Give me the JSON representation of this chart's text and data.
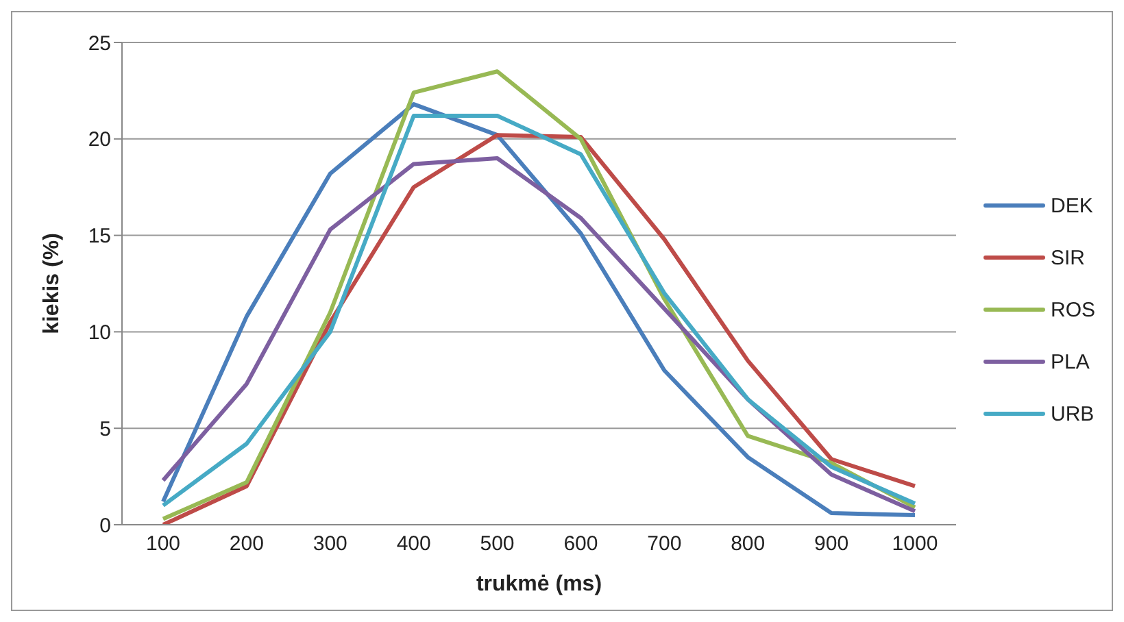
{
  "chart_data": {
    "type": "line",
    "xlabel": "trukmė (ms)",
    "ylabel": "kiekis (%)",
    "categories": [
      "100",
      "200",
      "300",
      "400",
      "500",
      "600",
      "700",
      "800",
      "900",
      "1000"
    ],
    "series": [
      {
        "name": "DEK",
        "color": "#4a7ebb",
        "values": [
          1.2,
          10.8,
          18.2,
          21.8,
          20.2,
          15.1,
          8.0,
          3.5,
          0.6,
          0.5
        ]
      },
      {
        "name": "SIR",
        "color": "#be4b48",
        "values": [
          0,
          2.0,
          10.5,
          17.5,
          20.2,
          20.1,
          14.8,
          8.5,
          3.4,
          2.0
        ]
      },
      {
        "name": "ROS",
        "color": "#98b954",
        "values": [
          0.3,
          2.2,
          11.0,
          22.4,
          23.5,
          20.0,
          11.7,
          4.6,
          3.2,
          0.9
        ]
      },
      {
        "name": "PLA",
        "color": "#7d5fa0",
        "values": [
          2.3,
          7.3,
          15.3,
          18.7,
          19.0,
          15.9,
          11.2,
          6.5,
          2.6,
          0.7
        ]
      },
      {
        "name": "URB",
        "color": "#46aac5",
        "values": [
          1.0,
          4.2,
          10.0,
          21.2,
          21.2,
          19.2,
          12.0,
          6.5,
          3.0,
          1.1
        ]
      }
    ],
    "ylim": [
      0,
      25
    ],
    "yticks": [
      0,
      5,
      10,
      15,
      20,
      25
    ],
    "grid": "y",
    "legend": "right",
    "marker": "none",
    "line_style": "solid"
  }
}
